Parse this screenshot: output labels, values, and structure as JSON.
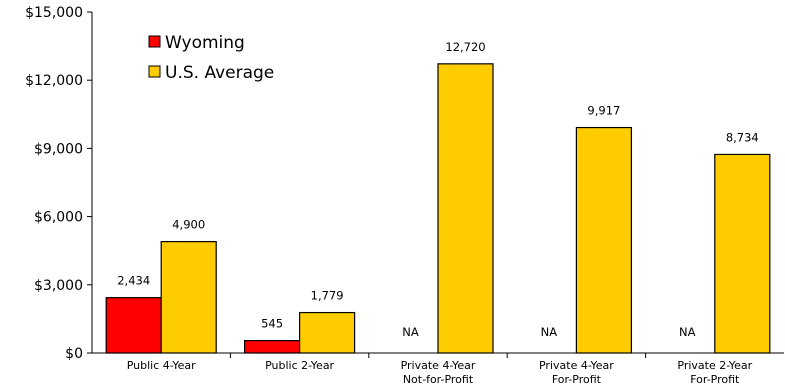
{
  "chart_data": {
    "type": "bar",
    "title": "",
    "xlabel": "",
    "ylabel": "",
    "ylim": [
      0,
      15000
    ],
    "yticks": [
      0,
      3000,
      6000,
      9000,
      12000,
      15000
    ],
    "ytick_labels": [
      "$0",
      "$3,000",
      "$6,000",
      "$9,000",
      "$12,000",
      "$15,000"
    ],
    "categories": [
      [
        "Public 4-Year"
      ],
      [
        "Public 2-Year"
      ],
      [
        "Private 4-Year",
        "Not-for-Profit"
      ],
      [
        "Private 4-Year",
        "For-Profit"
      ],
      [
        "Private 2-Year",
        "For-Profit"
      ]
    ],
    "series": [
      {
        "name": "Wyoming",
        "color": "#ff0000",
        "values": [
          2434,
          545,
          null,
          null,
          null
        ],
        "labels": [
          "2,434",
          "545",
          "NA",
          "NA",
          "NA"
        ]
      },
      {
        "name": "U.S. Average",
        "color": "#ffcc00",
        "values": [
          4900,
          1779,
          12720,
          9917,
          8734
        ],
        "labels": [
          "4,900",
          "1,779",
          "12,720",
          "9,917",
          "8,734"
        ]
      }
    ],
    "legend": {
      "position": "top-left"
    },
    "grid": false
  }
}
